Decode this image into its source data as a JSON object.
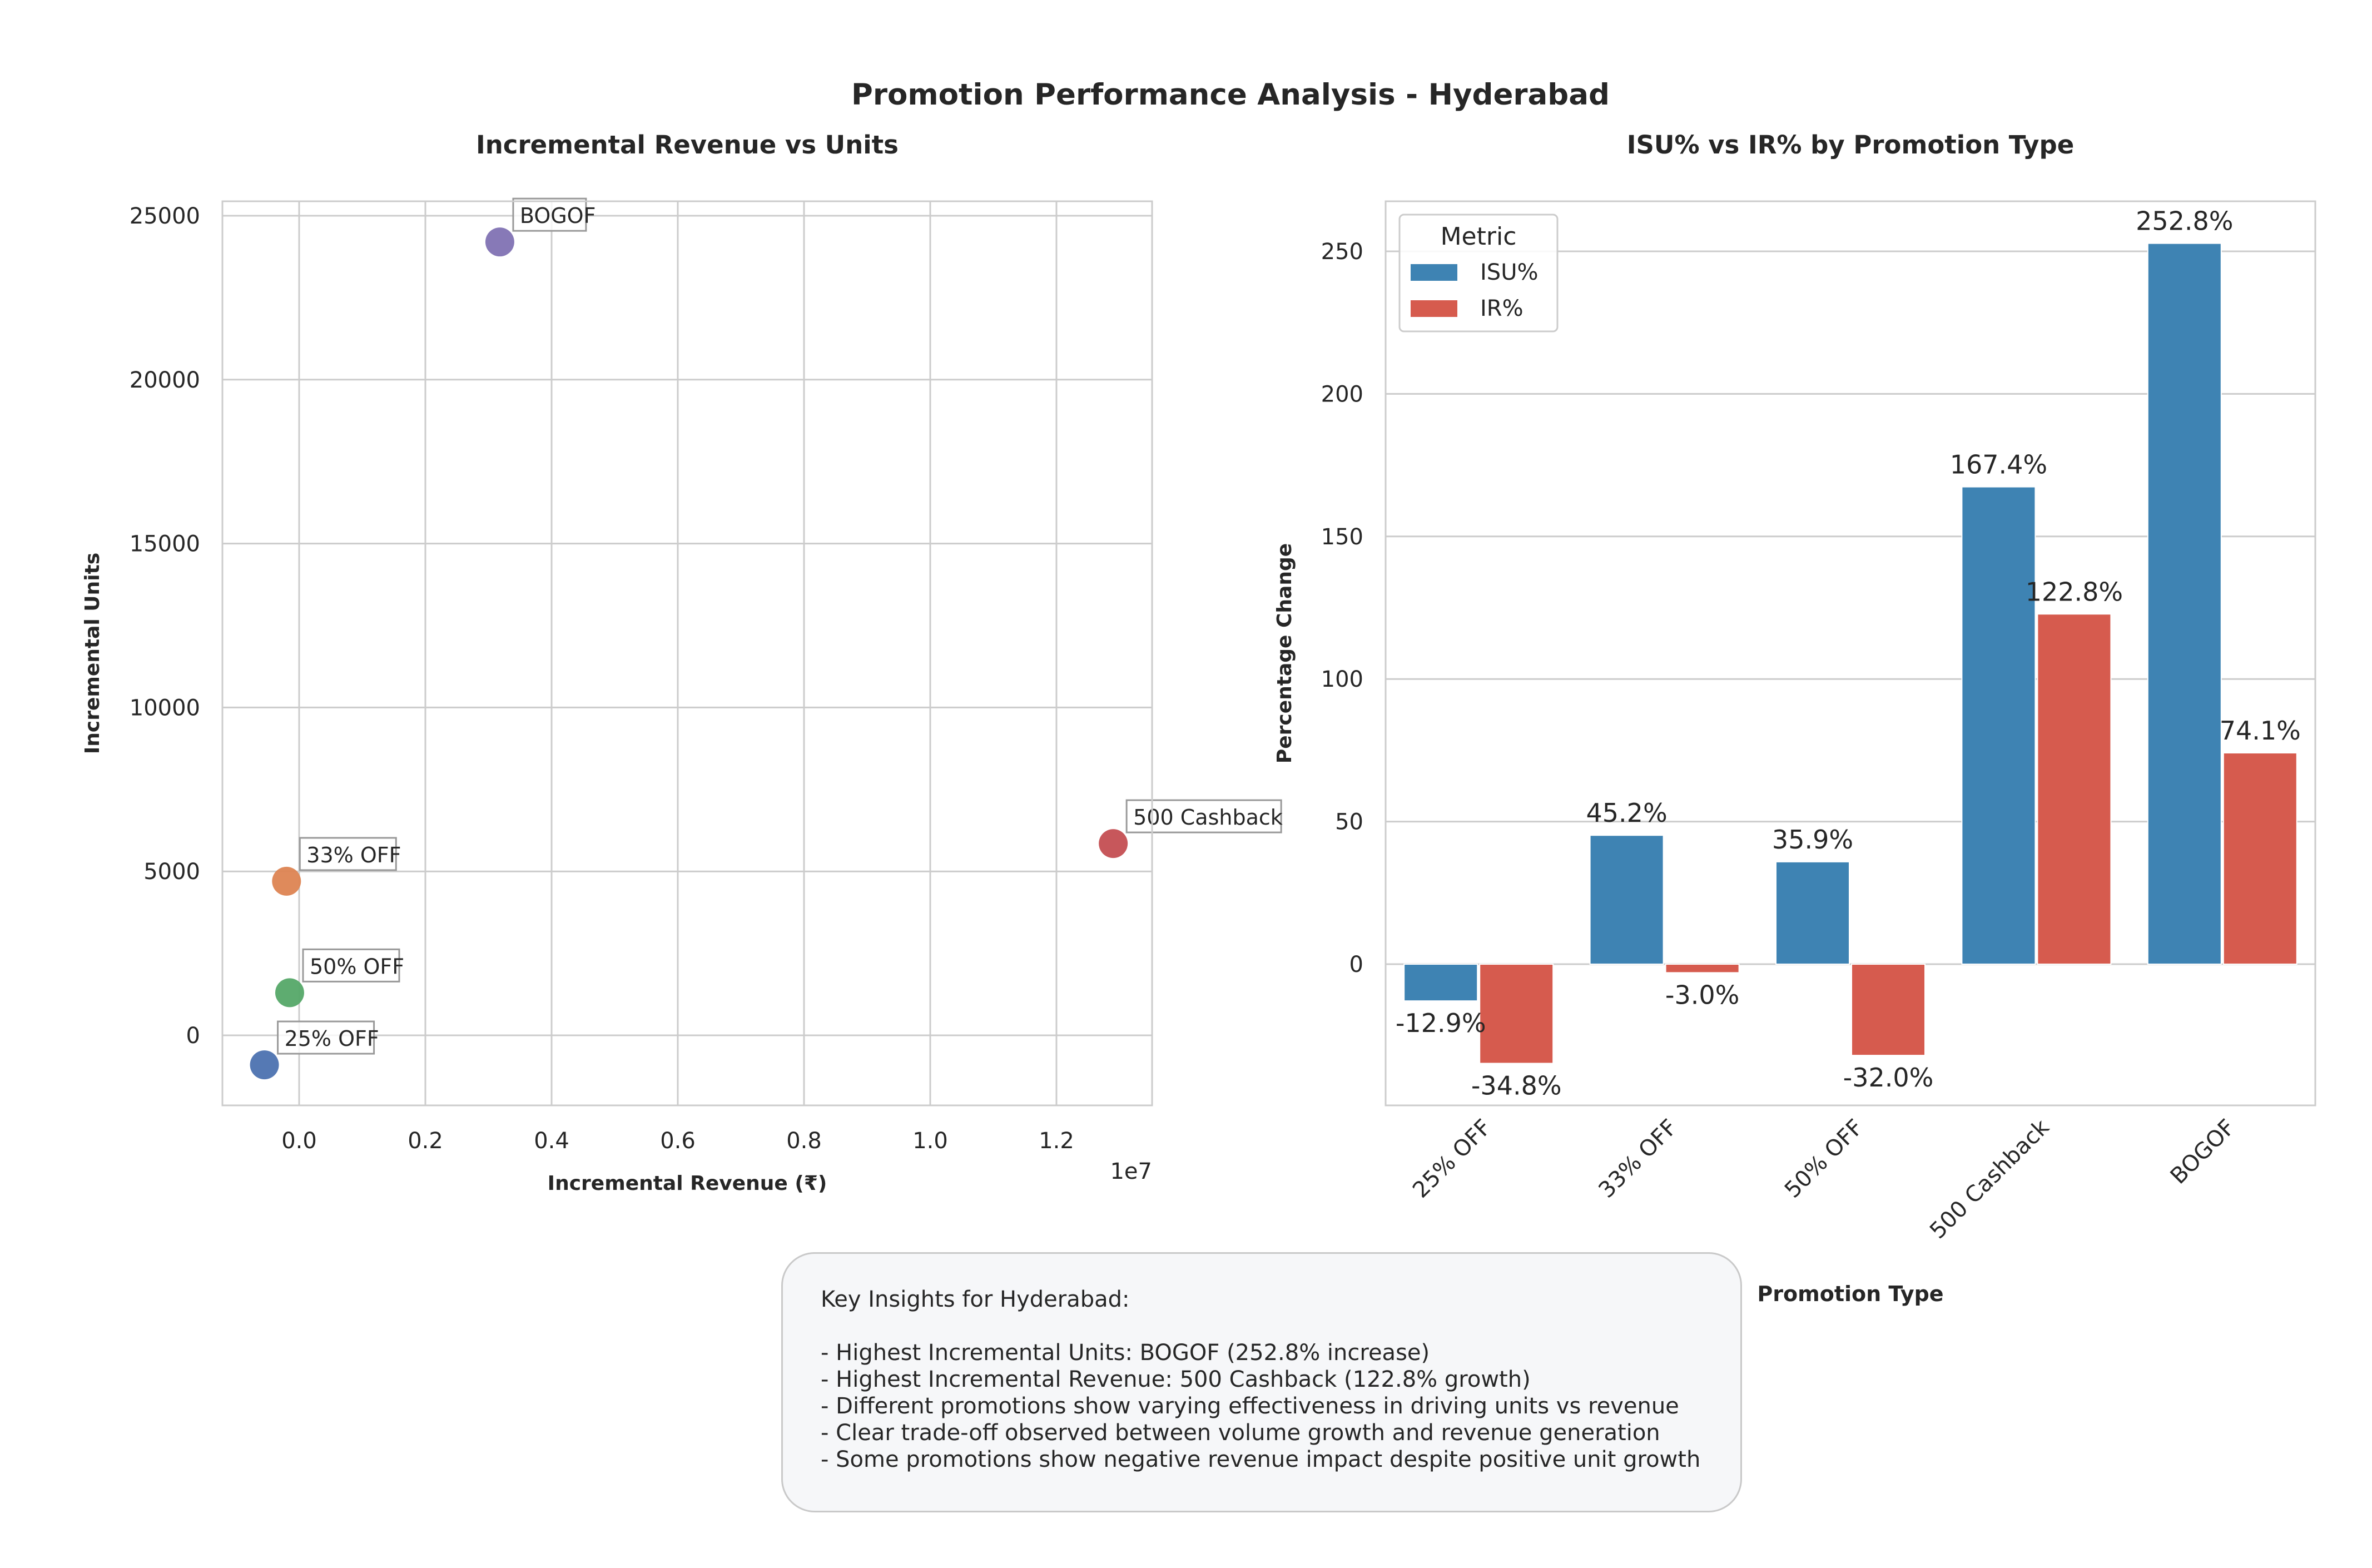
{
  "figure": {
    "suptitle": "Promotion Performance Analysis - Hyderabad"
  },
  "colors": {
    "isu": "#3e83b3",
    "ir": "#d65b4e",
    "grid": "#cccccc",
    "spine": "#cccccc",
    "points": {
      "25% OFF": "#4c72b0",
      "33% OFF": "#dd8452",
      "50% OFF": "#55a868",
      "500 Cashback": "#c44e52",
      "BOGOF": "#8172b3"
    }
  },
  "chart_data": [
    {
      "type": "scatter",
      "title": "Incremental Revenue vs Units",
      "xlabel": "Incremental Revenue (₹)",
      "ylabel": "Incremental Units",
      "x_offset_label": "1e7",
      "xlim": [
        -1200000,
        13600000
      ],
      "ylim": [
        -2200000,
        25500
      ],
      "grid": true,
      "x_ticks": [
        0,
        2000000,
        4000000,
        6000000,
        8000000,
        10000000,
        12000000
      ],
      "x_tick_labels": [
        "0.0",
        "0.2",
        "0.4",
        "0.6",
        "0.8",
        "1.0",
        "1.2"
      ],
      "y_ticks": [
        0,
        5000,
        10000,
        15000,
        20000,
        25000
      ],
      "y_tick_labels": [
        "0",
        "5000",
        "10000",
        "15000",
        "20000",
        "25000"
      ],
      "points": [
        {
          "label": "25% OFF",
          "x": -550000,
          "y": -900
        },
        {
          "label": "33% OFF",
          "x": -200000,
          "y": 4700
        },
        {
          "label": "50% OFF",
          "x": -150000,
          "y": 1300
        },
        {
          "label": "500 Cashback",
          "x": 12900000,
          "y": 5850
        },
        {
          "label": "BOGOF",
          "x": 3180000,
          "y": 24200
        }
      ]
    },
    {
      "type": "bar",
      "title": "ISU% vs IR% by Promotion Type",
      "xlabel": "Promotion Type",
      "ylabel": "Percentage Change",
      "ylim": [
        -48,
        268
      ],
      "grid": true,
      "y_ticks": [
        0,
        50,
        100,
        150,
        200,
        250
      ],
      "y_tick_labels": [
        "0",
        "50",
        "100",
        "150",
        "200",
        "250"
      ],
      "categories": [
        "25% OFF",
        "33% OFF",
        "50% OFF",
        "500 Cashback",
        "BOGOF"
      ],
      "legend": {
        "title": "Metric",
        "position": "top-left"
      },
      "series": [
        {
          "name": "ISU%",
          "values": [
            -12.9,
            45.2,
            35.9,
            167.4,
            252.8
          ],
          "value_labels": [
            "-12.9%",
            "45.2%",
            "35.9%",
            "167.4%",
            "252.8%"
          ]
        },
        {
          "name": "IR%",
          "values": [
            -34.8,
            -3.0,
            -32.0,
            122.8,
            74.1
          ],
          "value_labels": [
            "-34.8%",
            "-3.0%",
            "-32.0%",
            "122.8%",
            "74.1%"
          ]
        }
      ]
    }
  ],
  "insights": {
    "heading": "Key Insights for Hyderabad:",
    "lines": [
      "- Highest Incremental Units: BOGOF (252.8% increase)",
      "- Highest Incremental Revenue: 500 Cashback (122.8% growth)",
      "- Different promotions show varying effectiveness in driving units vs revenue",
      "- Clear trade-off observed between volume growth and revenue generation",
      "- Some promotions show negative revenue impact despite positive unit growth"
    ]
  }
}
